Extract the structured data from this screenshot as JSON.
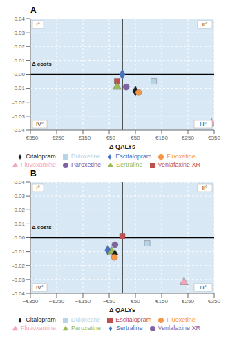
{
  "chart_data": [
    {
      "type": "scatter",
      "title": "A",
      "xlabel": "Δ QALYs",
      "xlim": [
        -350,
        350
      ],
      "xticks": [
        {
          "value": -350,
          "label": "−€350"
        },
        {
          "value": -250,
          "label": "−€250"
        },
        {
          "value": -150,
          "label": "−€150"
        },
        {
          "value": -50,
          "label": "−€50"
        },
        {
          "value": 50,
          "label": "€50"
        },
        {
          "value": 150,
          "label": "€150"
        },
        {
          "value": 250,
          "label": "€250"
        },
        {
          "value": 350,
          "label": "€350"
        }
      ],
      "ylim": [
        -0.04,
        0.04
      ],
      "yticks": [
        -0.04,
        -0.03,
        -0.02,
        -0.01,
        {
          "value": 0,
          "label": "0.00"
        },
        0.01,
        0.02,
        0.03,
        0.04
      ],
      "grid": true,
      "legend": "bottom",
      "annotations": [
        {
          "text": "Δ costs",
          "x": -345,
          "y": 0.005
        },
        {
          "text": "I°"
        },
        {
          "text": "II°"
        },
        {
          "text": "IV°"
        },
        {
          "text": "III°"
        }
      ],
      "series": [
        {
          "name": "Escitalopram",
          "color": "#4472C4",
          "marker": "diamond",
          "x": [
            0
          ],
          "values": [
            0
          ]
        },
        {
          "name": "Venlafaxine XR",
          "color": "#C0504D",
          "marker": "square",
          "x": [
            -20
          ],
          "values": [
            -0.005
          ]
        },
        {
          "name": "Sertraline",
          "color": "#9BBB59",
          "marker": "triangle",
          "x": [
            -20
          ],
          "values": [
            -0.009
          ]
        },
        {
          "name": "Paroxetine",
          "color": "#8064A2",
          "marker": "circle",
          "x": [
            15
          ],
          "values": [
            -0.009
          ]
        },
        {
          "name": "Citalopram",
          "color": "#1C1C1C",
          "marker": "diamond",
          "x": [
            50
          ],
          "values": [
            -0.012
          ]
        },
        {
          "name": "Fluoxetine",
          "color": "#F79646",
          "marker": "circle",
          "x": [
            62
          ],
          "values": [
            -0.013
          ]
        },
        {
          "name": "Duloxetine",
          "color": "#B8D4E8",
          "marker": "square",
          "x": [
            120
          ],
          "values": [
            -0.005
          ]
        },
        {
          "name": "Fluvoxamine",
          "color": "#F4A6B8",
          "marker": "triangle",
          "x": [
            340
          ],
          "values": [
            -0.035
          ]
        }
      ]
    },
    {
      "type": "scatter",
      "title": "B",
      "xlabel": "Δ QALYs",
      "xlim": [
        -350,
        350
      ],
      "xticks": [
        {
          "value": -350,
          "label": "−€350"
        },
        {
          "value": -250,
          "label": "−€250"
        },
        {
          "value": -150,
          "label": "−€150"
        },
        {
          "value": -50,
          "label": "−€50"
        },
        {
          "value": 50,
          "label": "€50"
        },
        {
          "value": 150,
          "label": "€150"
        },
        {
          "value": 250,
          "label": "€250"
        },
        {
          "value": 350,
          "label": "€350"
        }
      ],
      "ylim": [
        -0.04,
        0.04
      ],
      "yticks": [
        -0.04,
        -0.03,
        -0.02,
        -0.01,
        {
          "value": 0,
          "label": "0.00"
        },
        0.01,
        0.02,
        0.03,
        0.04
      ],
      "grid": true,
      "legend": "bottom",
      "annotations": [
        {
          "text": "Δ costs",
          "x": -345,
          "y": 0.005
        },
        {
          "text": "I°"
        },
        {
          "text": "II°"
        },
        {
          "text": "IV°"
        },
        {
          "text": "III°"
        }
      ],
      "series": [
        {
          "name": "Sertraline",
          "color": "#4472C4",
          "marker": "diamond",
          "x": [
            -55
          ],
          "values": [
            -0.009
          ]
        },
        {
          "name": "Escitalopram",
          "color": "#C0504D",
          "marker": "square",
          "x": [
            0
          ],
          "values": [
            0.001
          ]
        },
        {
          "name": "Paroxetine",
          "color": "#9BBB59",
          "marker": "triangle",
          "x": [
            -40
          ],
          "values": [
            -0.01
          ]
        },
        {
          "name": "Venlafaxine XR",
          "color": "#8064A2",
          "marker": "circle",
          "x": [
            -28
          ],
          "values": [
            -0.005
          ]
        },
        {
          "name": "Citalopram",
          "color": "#1C1C1C",
          "marker": "diamond",
          "x": [
            -28
          ],
          "values": [
            -0.012
          ]
        },
        {
          "name": "Fluoxetine",
          "color": "#F79646",
          "marker": "circle",
          "x": [
            -30
          ],
          "values": [
            -0.014
          ]
        },
        {
          "name": "Duloxetine",
          "color": "#B8D4E8",
          "marker": "square",
          "x": [
            95
          ],
          "values": [
            -0.004
          ]
        },
        {
          "name": "Fluvoxamine",
          "color": "#F4A6B8",
          "marker": "triangle",
          "x": [
            235
          ],
          "values": [
            -0.032
          ]
        }
      ]
    }
  ]
}
